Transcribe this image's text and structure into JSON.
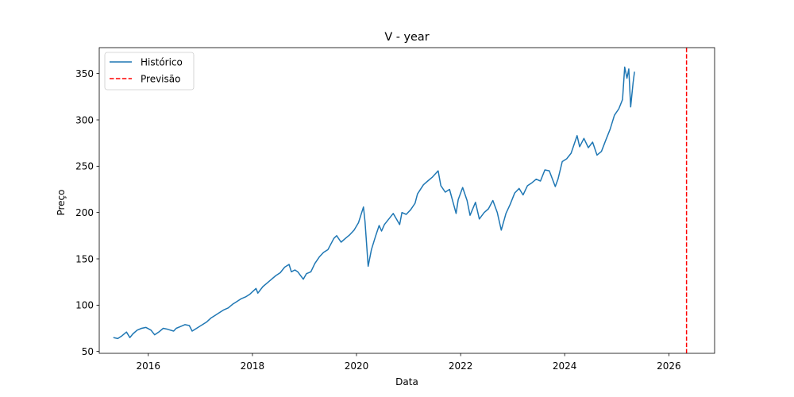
{
  "chart_data": {
    "type": "line",
    "title": "V - year",
    "xlabel": "Data",
    "ylabel": "Preço",
    "xlim": [
      "2015-01-22",
      "2026-11-18"
    ],
    "ylim": [
      48,
      378
    ],
    "xticks": [
      "2016",
      "2018",
      "2020",
      "2022",
      "2024",
      "2026"
    ],
    "yticks": [
      "50",
      "100",
      "150",
      "200",
      "250",
      "300",
      "350"
    ],
    "grid": false,
    "legend": {
      "position": "upper-left",
      "entries": [
        "Histórico",
        "Previsão"
      ]
    },
    "series": [
      {
        "name": "Histórico",
        "color": "#1f77b4",
        "style": "solid",
        "x": [
          "2015-05-01",
          "2015-06-01",
          "2015-07-01",
          "2015-08-01",
          "2015-08-25",
          "2015-09-15",
          "2015-10-15",
          "2015-11-15",
          "2015-12-15",
          "2016-01-20",
          "2016-02-15",
          "2016-03-15",
          "2016-04-15",
          "2016-05-15",
          "2016-06-27",
          "2016-07-15",
          "2016-08-15",
          "2016-09-15",
          "2016-10-15",
          "2016-11-04",
          "2016-12-15",
          "2017-01-15",
          "2017-02-15",
          "2017-03-15",
          "2017-04-15",
          "2017-05-15",
          "2017-06-15",
          "2017-07-15",
          "2017-08-15",
          "2017-09-15",
          "2017-10-15",
          "2017-11-15",
          "2017-12-15",
          "2018-01-26",
          "2018-02-08",
          "2018-03-15",
          "2018-04-15",
          "2018-05-15",
          "2018-06-15",
          "2018-07-15",
          "2018-08-15",
          "2018-09-15",
          "2018-10-01",
          "2018-10-26",
          "2018-11-15",
          "2018-12-24",
          "2019-01-15",
          "2019-02-15",
          "2019-03-15",
          "2019-04-15",
          "2019-05-15",
          "2019-06-15",
          "2019-07-26",
          "2019-08-15",
          "2019-09-15",
          "2019-10-15",
          "2019-11-15",
          "2019-12-15",
          "2020-01-15",
          "2020-02-19",
          "2020-03-01",
          "2020-03-23",
          "2020-04-15",
          "2020-05-15",
          "2020-06-08",
          "2020-06-25",
          "2020-07-15",
          "2020-08-15",
          "2020-09-15",
          "2020-10-30",
          "2020-11-15",
          "2020-12-15",
          "2021-01-15",
          "2021-02-15",
          "2021-03-04",
          "2021-04-15",
          "2021-05-15",
          "2021-06-15",
          "2021-07-27",
          "2021-08-15",
          "2021-09-15",
          "2021-10-15",
          "2021-11-30",
          "2021-12-15",
          "2022-01-15",
          "2022-02-15",
          "2022-03-08",
          "2022-04-15",
          "2022-05-12",
          "2022-06-15",
          "2022-07-15",
          "2022-08-15",
          "2022-09-15",
          "2022-10-13",
          "2022-11-15",
          "2022-12-15",
          "2023-01-15",
          "2023-02-15",
          "2023-03-15",
          "2023-04-15",
          "2023-05-15",
          "2023-06-15",
          "2023-07-15",
          "2023-08-15",
          "2023-09-15",
          "2023-10-27",
          "2023-11-15",
          "2023-12-15",
          "2024-01-15",
          "2024-02-15",
          "2024-03-28",
          "2024-04-15",
          "2024-05-15",
          "2024-06-15",
          "2024-07-15",
          "2024-08-15",
          "2024-09-15",
          "2024-10-15",
          "2024-11-15",
          "2024-12-15",
          "2025-01-15",
          "2025-02-10",
          "2025-02-25",
          "2025-03-13",
          "2025-03-26",
          "2025-04-08",
          "2025-04-25",
          "2025-05-05"
        ],
        "y": [
          65,
          64,
          67,
          71,
          65,
          69,
          73,
          75,
          76,
          73,
          68,
          71,
          75,
          74,
          72,
          75,
          77,
          79,
          78,
          72,
          76,
          79,
          82,
          86,
          89,
          92,
          95,
          97,
          101,
          104,
          107,
          109,
          112,
          118,
          113,
          120,
          124,
          128,
          132,
          135,
          141,
          144,
          136,
          138,
          136,
          128,
          134,
          136,
          145,
          152,
          157,
          160,
          172,
          175,
          168,
          172,
          176,
          181,
          189,
          206,
          190,
          142,
          160,
          175,
          186,
          180,
          187,
          193,
          199,
          187,
          200,
          198,
          203,
          210,
          220,
          230,
          234,
          238,
          245,
          229,
          222,
          225,
          199,
          214,
          227,
          213,
          197,
          211,
          193,
          200,
          204,
          213,
          200,
          181,
          199,
          209,
          221,
          226,
          219,
          229,
          232,
          236,
          234,
          246,
          245,
          228,
          236,
          255,
          258,
          264,
          283,
          271,
          280,
          270,
          276,
          262,
          266,
          278,
          290,
          305,
          312,
          322,
          357,
          345,
          355,
          314,
          340,
          352
        ]
      },
      {
        "name": "Previsão",
        "color": "#ff0000",
        "style": "dashed",
        "x": [
          "2026-05-05",
          "2026-05-05"
        ],
        "y": [
          48,
          378
        ]
      }
    ]
  }
}
